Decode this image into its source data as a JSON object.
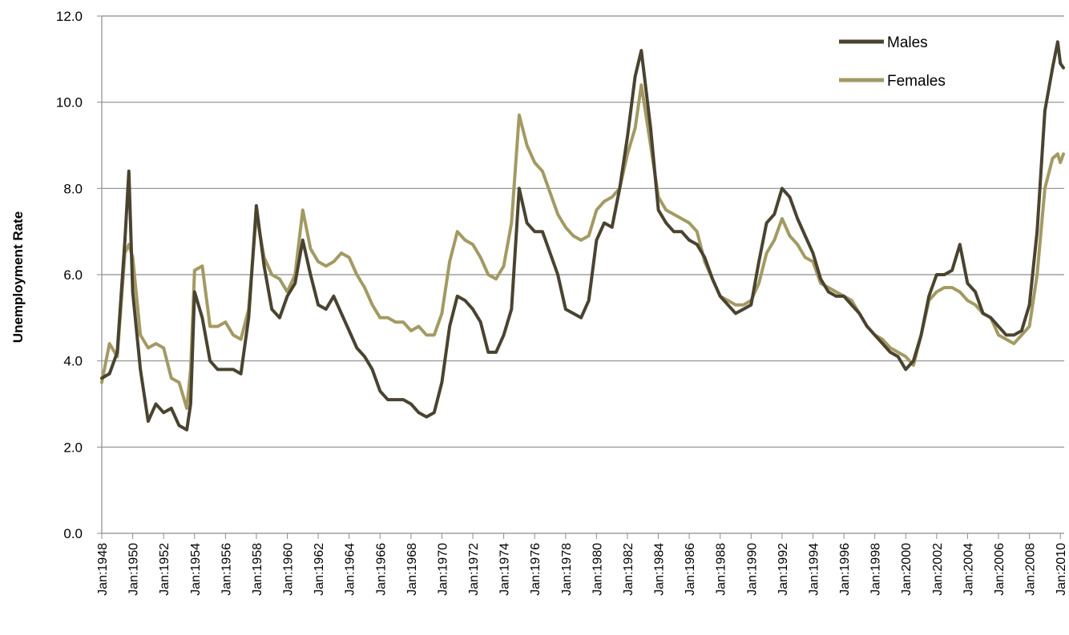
{
  "chart_data": {
    "type": "line",
    "title": "",
    "xlabel": "",
    "ylabel": "Unemployment Rate",
    "ylim": [
      0,
      12
    ],
    "grid": true,
    "legend_position": "top-right",
    "y_ticks": [
      "0.0",
      "2.0",
      "4.0",
      "6.0",
      "8.0",
      "10.0",
      "12.0"
    ],
    "x_ticks": [
      "Jan:1948",
      "Jan:1950",
      "Jan:1952",
      "Jan:1954",
      "Jan:1956",
      "Jan:1958",
      "Jan:1960",
      "Jan:1962",
      "Jan:1964",
      "Jan:1966",
      "Jan:1968",
      "Jan:1970",
      "Jan:1972",
      "Jan:1974",
      "Jan:1976",
      "Jan:1978",
      "Jan:1980",
      "Jan:1982",
      "Jan:1984",
      "Jan:1986",
      "Jan:1988",
      "Jan:1990",
      "Jan:1992",
      "Jan:1994",
      "Jan:1996",
      "Jan:1998",
      "Jan:2000",
      "Jan:2002",
      "Jan:2004",
      "Jan:2006",
      "Jan:2008",
      "Jan:2010"
    ],
    "x": [
      1948.0,
      1948.5,
      1949.0,
      1949.5,
      1949.75,
      1950.0,
      1950.5,
      1951.0,
      1951.5,
      1952.0,
      1952.5,
      1953.0,
      1953.5,
      1953.75,
      1954.0,
      1954.5,
      1955.0,
      1955.5,
      1956.0,
      1956.5,
      1957.0,
      1957.5,
      1958.0,
      1958.5,
      1959.0,
      1959.5,
      1960.0,
      1960.5,
      1961.0,
      1961.5,
      1962.0,
      1962.5,
      1963.0,
      1963.5,
      1964.0,
      1964.5,
      1965.0,
      1965.5,
      1966.0,
      1966.5,
      1967.0,
      1967.5,
      1968.0,
      1968.5,
      1969.0,
      1969.5,
      1970.0,
      1970.5,
      1971.0,
      1971.5,
      1972.0,
      1972.5,
      1973.0,
      1973.5,
      1974.0,
      1974.5,
      1975.0,
      1975.5,
      1976.0,
      1976.5,
      1977.0,
      1977.5,
      1978.0,
      1978.5,
      1979.0,
      1979.5,
      1980.0,
      1980.5,
      1981.0,
      1981.5,
      1982.0,
      1982.5,
      1982.9,
      1983.5,
      1984.0,
      1984.5,
      1985.0,
      1985.5,
      1986.0,
      1986.5,
      1987.0,
      1987.5,
      1988.0,
      1988.5,
      1989.0,
      1989.5,
      1990.0,
      1990.5,
      1991.0,
      1991.5,
      1992.0,
      1992.5,
      1993.0,
      1993.5,
      1994.0,
      1994.5,
      1995.0,
      1995.5,
      1996.0,
      1996.5,
      1997.0,
      1997.5,
      1998.0,
      1998.5,
      1999.0,
      1999.5,
      2000.0,
      2000.5,
      2001.0,
      2001.5,
      2002.0,
      2002.5,
      2003.0,
      2003.5,
      2004.0,
      2004.5,
      2005.0,
      2005.5,
      2006.0,
      2006.5,
      2007.0,
      2007.5,
      2008.0,
      2008.5,
      2009.0,
      2009.5,
      2009.83,
      2010.0,
      2010.2
    ],
    "series": [
      {
        "name": "Males",
        "color": "#4a4330",
        "values": [
          3.6,
          3.7,
          4.2,
          6.8,
          8.4,
          5.6,
          3.8,
          2.6,
          3.0,
          2.8,
          2.9,
          2.5,
          2.4,
          3.0,
          5.6,
          5.0,
          4.0,
          3.8,
          3.8,
          3.8,
          3.7,
          5.0,
          7.6,
          6.2,
          5.2,
          5.0,
          5.5,
          5.8,
          6.8,
          6.0,
          5.3,
          5.2,
          5.5,
          5.1,
          4.7,
          4.3,
          4.1,
          3.8,
          3.3,
          3.1,
          3.1,
          3.1,
          3.0,
          2.8,
          2.7,
          2.8,
          3.5,
          4.8,
          5.5,
          5.4,
          5.2,
          4.9,
          4.2,
          4.2,
          4.6,
          5.2,
          8.0,
          7.2,
          7.0,
          7.0,
          6.5,
          6.0,
          5.2,
          5.1,
          5.0,
          5.4,
          6.8,
          7.2,
          7.1,
          8.0,
          9.2,
          10.6,
          11.2,
          9.4,
          7.5,
          7.2,
          7.0,
          7.0,
          6.8,
          6.7,
          6.4,
          5.9,
          5.5,
          5.3,
          5.1,
          5.2,
          5.3,
          6.3,
          7.2,
          7.4,
          8.0,
          7.8,
          7.3,
          6.9,
          6.5,
          5.9,
          5.6,
          5.5,
          5.5,
          5.3,
          5.1,
          4.8,
          4.6,
          4.4,
          4.2,
          4.1,
          3.8,
          4.0,
          4.6,
          5.5,
          6.0,
          6.0,
          6.1,
          6.7,
          5.8,
          5.6,
          5.1,
          5.0,
          4.8,
          4.6,
          4.6,
          4.7,
          5.3,
          7.0,
          9.8,
          10.8,
          11.4,
          10.9,
          10.8
        ]
      },
      {
        "name": "Females",
        "color": "#a39a63",
        "values": [
          3.5,
          4.4,
          4.1,
          6.5,
          6.7,
          6.4,
          4.6,
          4.3,
          4.4,
          4.3,
          3.6,
          3.5,
          2.9,
          3.8,
          6.1,
          6.2,
          4.8,
          4.8,
          4.9,
          4.6,
          4.5,
          5.2,
          7.4,
          6.4,
          6.0,
          5.9,
          5.6,
          6.0,
          7.5,
          6.6,
          6.3,
          6.2,
          6.3,
          6.5,
          6.4,
          6.0,
          5.7,
          5.3,
          5.0,
          5.0,
          4.9,
          4.9,
          4.7,
          4.8,
          4.6,
          4.6,
          5.1,
          6.3,
          7.0,
          6.8,
          6.7,
          6.4,
          6.0,
          5.9,
          6.2,
          7.2,
          9.7,
          9.0,
          8.6,
          8.4,
          7.9,
          7.4,
          7.1,
          6.9,
          6.8,
          6.9,
          7.5,
          7.7,
          7.8,
          8.0,
          8.8,
          9.4,
          10.4,
          9.0,
          7.8,
          7.5,
          7.4,
          7.3,
          7.2,
          7.0,
          6.3,
          5.9,
          5.5,
          5.4,
          5.3,
          5.3,
          5.4,
          5.8,
          6.5,
          6.8,
          7.3,
          6.9,
          6.7,
          6.4,
          6.3,
          5.8,
          5.7,
          5.6,
          5.5,
          5.4,
          5.1,
          4.8,
          4.6,
          4.5,
          4.3,
          4.2,
          4.1,
          3.9,
          4.6,
          5.4,
          5.6,
          5.7,
          5.7,
          5.6,
          5.4,
          5.3,
          5.1,
          5.0,
          4.6,
          4.5,
          4.4,
          4.6,
          4.8,
          6.0,
          8.0,
          8.7,
          8.8,
          8.6,
          8.8
        ]
      }
    ]
  }
}
